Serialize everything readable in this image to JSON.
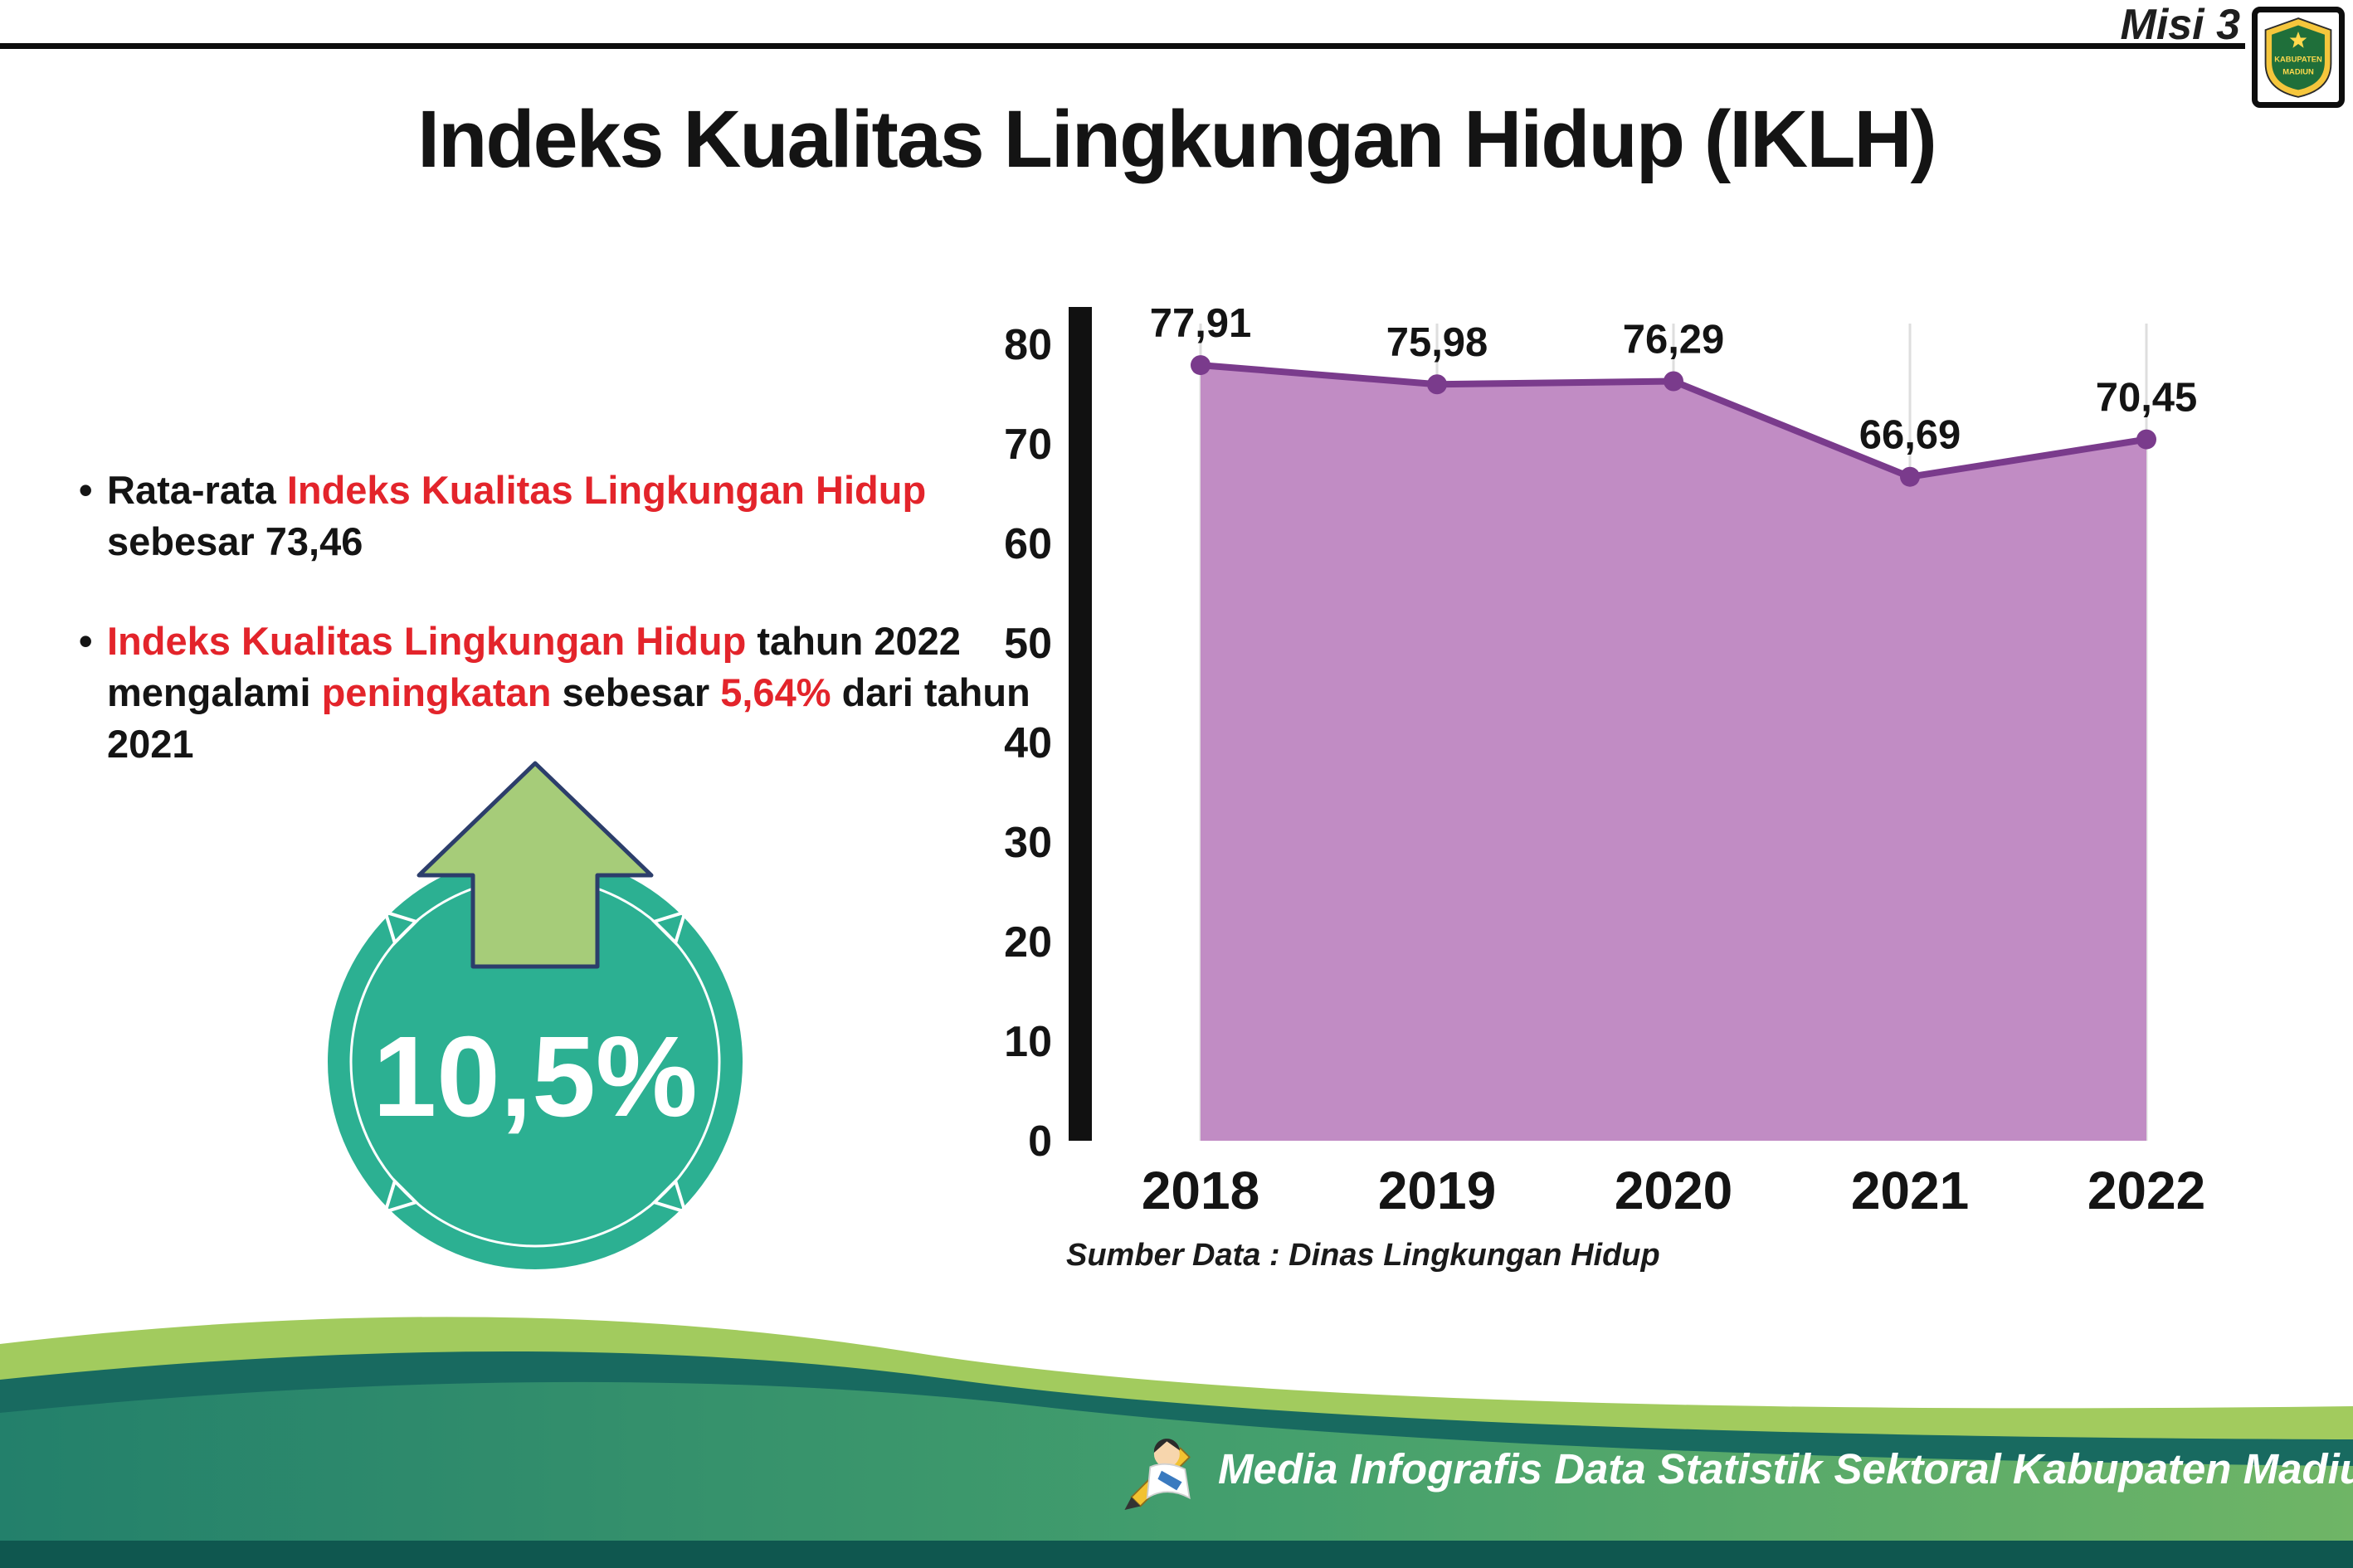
{
  "header": {
    "misi_label": "Misi 3",
    "title": "Indeks Kualitas Lingkungan Hidup (IKLH)",
    "logo": {
      "line1": "KABUPATEN",
      "line2": "MADIUN"
    }
  },
  "bullets": {
    "marker": "•",
    "b1": {
      "seg1": "Rata-rata ",
      "seg2": "Indeks Kualitas Lingkungan Hidup",
      "seg3": " sebesar 73,46"
    },
    "b2": {
      "seg1": "Indeks Kualitas Lingkungan Hidup",
      "seg2": " tahun 2022 mengalami ",
      "seg3": "peningkatan",
      "seg4": " sebesar ",
      "seg5": "5,64%",
      "seg6": " dari tahun 2021"
    }
  },
  "badge": {
    "value": "10,5%"
  },
  "chart_data": {
    "type": "area",
    "categories": [
      "2018",
      "2019",
      "2020",
      "2021",
      "2022"
    ],
    "values": [
      77.91,
      75.98,
      76.29,
      66.69,
      70.45
    ],
    "value_labels": [
      "77,91",
      "75,98",
      "76,29",
      "66,69",
      "70,45"
    ],
    "title": "",
    "xlabel": "",
    "ylabel": "",
    "ylim": [
      0,
      80
    ],
    "ytick_step": 10,
    "grid": "vertical-light",
    "legend": "none",
    "colors": {
      "line": "#7a3b8c",
      "fill": "#c18cc4",
      "axis": "#111111"
    },
    "source": "Sumber Data : Dinas Lingkungan Hidup"
  },
  "footer": {
    "text": "Media Infografis Data Statistik Sektoral Kabupaten Madiun |"
  }
}
